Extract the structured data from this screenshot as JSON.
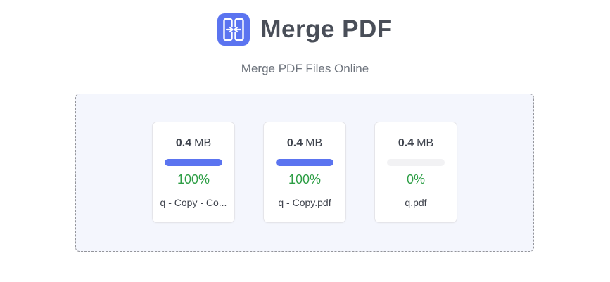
{
  "header": {
    "title": "Merge PDF",
    "icon": "merge-pdf-icon"
  },
  "subtitle": "Merge PDF Files Online",
  "colors": {
    "accent_blue": "#5b74f0",
    "progress_fill": "#5b74f0",
    "progress_track": "#f2f2f4",
    "percent_green": "#2d9e45",
    "dropzone_bg": "#f4f6fd",
    "dropzone_border_dashed": "#94959b",
    "title_text": "#494e58",
    "subtitle_text": "#6d737c"
  },
  "files": [
    {
      "size_value": "0.4",
      "size_unit": "MB",
      "progress": 100,
      "percent": "100%",
      "name": "q - Copy - Co..."
    },
    {
      "size_value": "0.4",
      "size_unit": "MB",
      "progress": 100,
      "percent": "100%",
      "name": "q - Copy.pdf"
    },
    {
      "size_value": "0.4",
      "size_unit": "MB",
      "progress": 0,
      "percent": "0%",
      "name": "q.pdf"
    }
  ]
}
